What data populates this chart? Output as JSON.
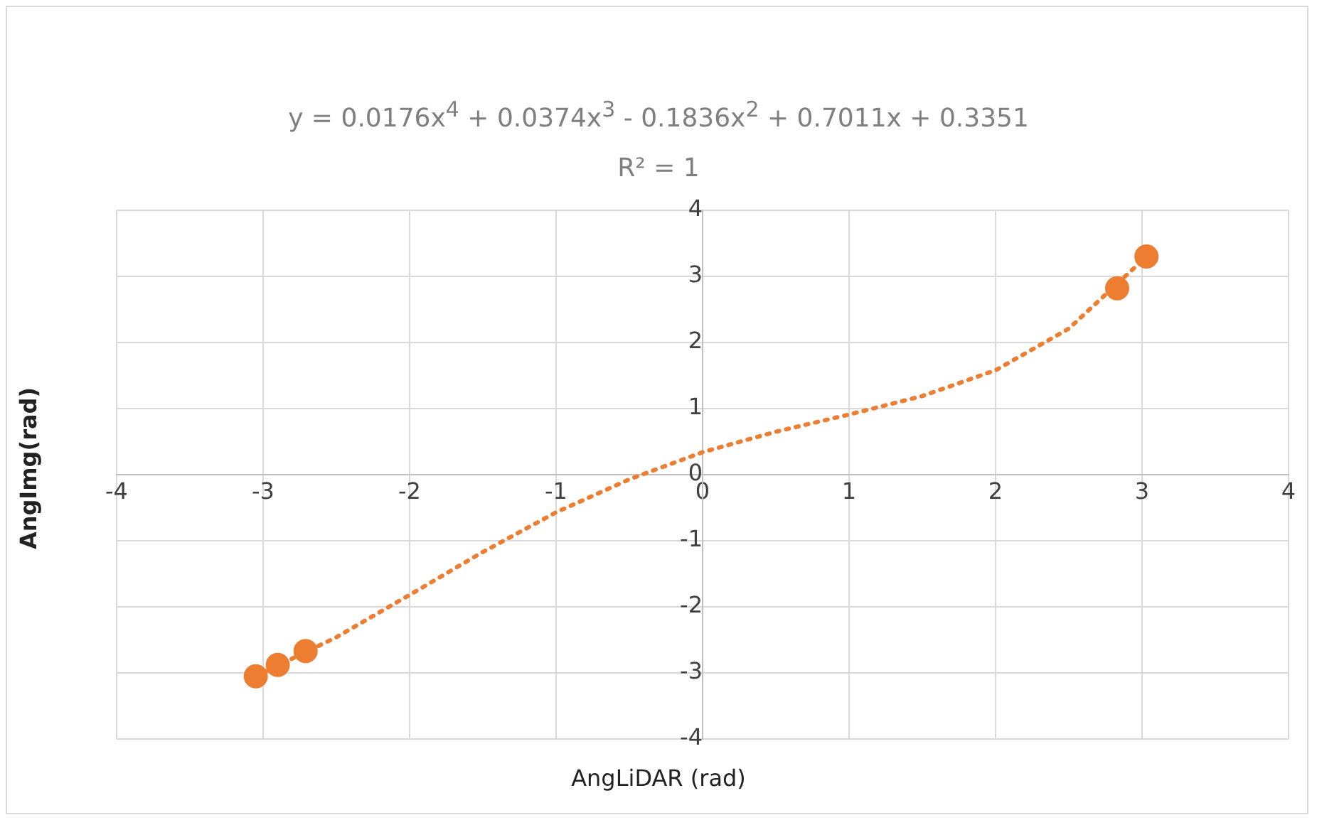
{
  "chart_data": {
    "type": "scatter",
    "xlabel": "AngLiDAR (rad)",
    "ylabel": "AngImg(rad)",
    "annotations": [
      "y = 0.0176x$^{4}$ + 0.0374x$^{3}$ - 0.1836x$^{2}$ + 0.7011x + 0.3351",
      "R² = 1"
    ],
    "series": [
      {
        "color": "#ed7d31",
        "marker": "circle",
        "x": [
          -3.05,
          -2.9,
          -2.71,
          2.83,
          3.03
        ],
        "values": [
          -3.05,
          -2.88,
          -2.67,
          2.82,
          3.3
        ]
      },
      {
        "type": "line",
        "color": "#ed7d31",
        "marker": "none",
        "line_style": "dotted",
        "x": [
          -3.05,
          -2.5,
          -2,
          -1.5,
          -1,
          -0.5,
          0,
          0.5,
          1,
          1.5,
          2,
          2.5,
          3.03
        ],
        "values": [
          -3.05,
          -2.46,
          -1.82,
          -1.17,
          -0.57,
          -0.07,
          0.34,
          0.65,
          0.91,
          1.19,
          1.58,
          2.21,
          3.3
        ]
      }
    ],
    "xlim": [
      -4,
      4
    ],
    "xticks": [
      -4,
      -3,
      -2,
      -1,
      0,
      1,
      2,
      3,
      4
    ],
    "ylim": [
      -4,
      4
    ],
    "yticks": [
      -4,
      -3,
      -2,
      -1,
      0,
      1,
      2,
      3,
      4
    ],
    "grid": true,
    "legend": false
  }
}
